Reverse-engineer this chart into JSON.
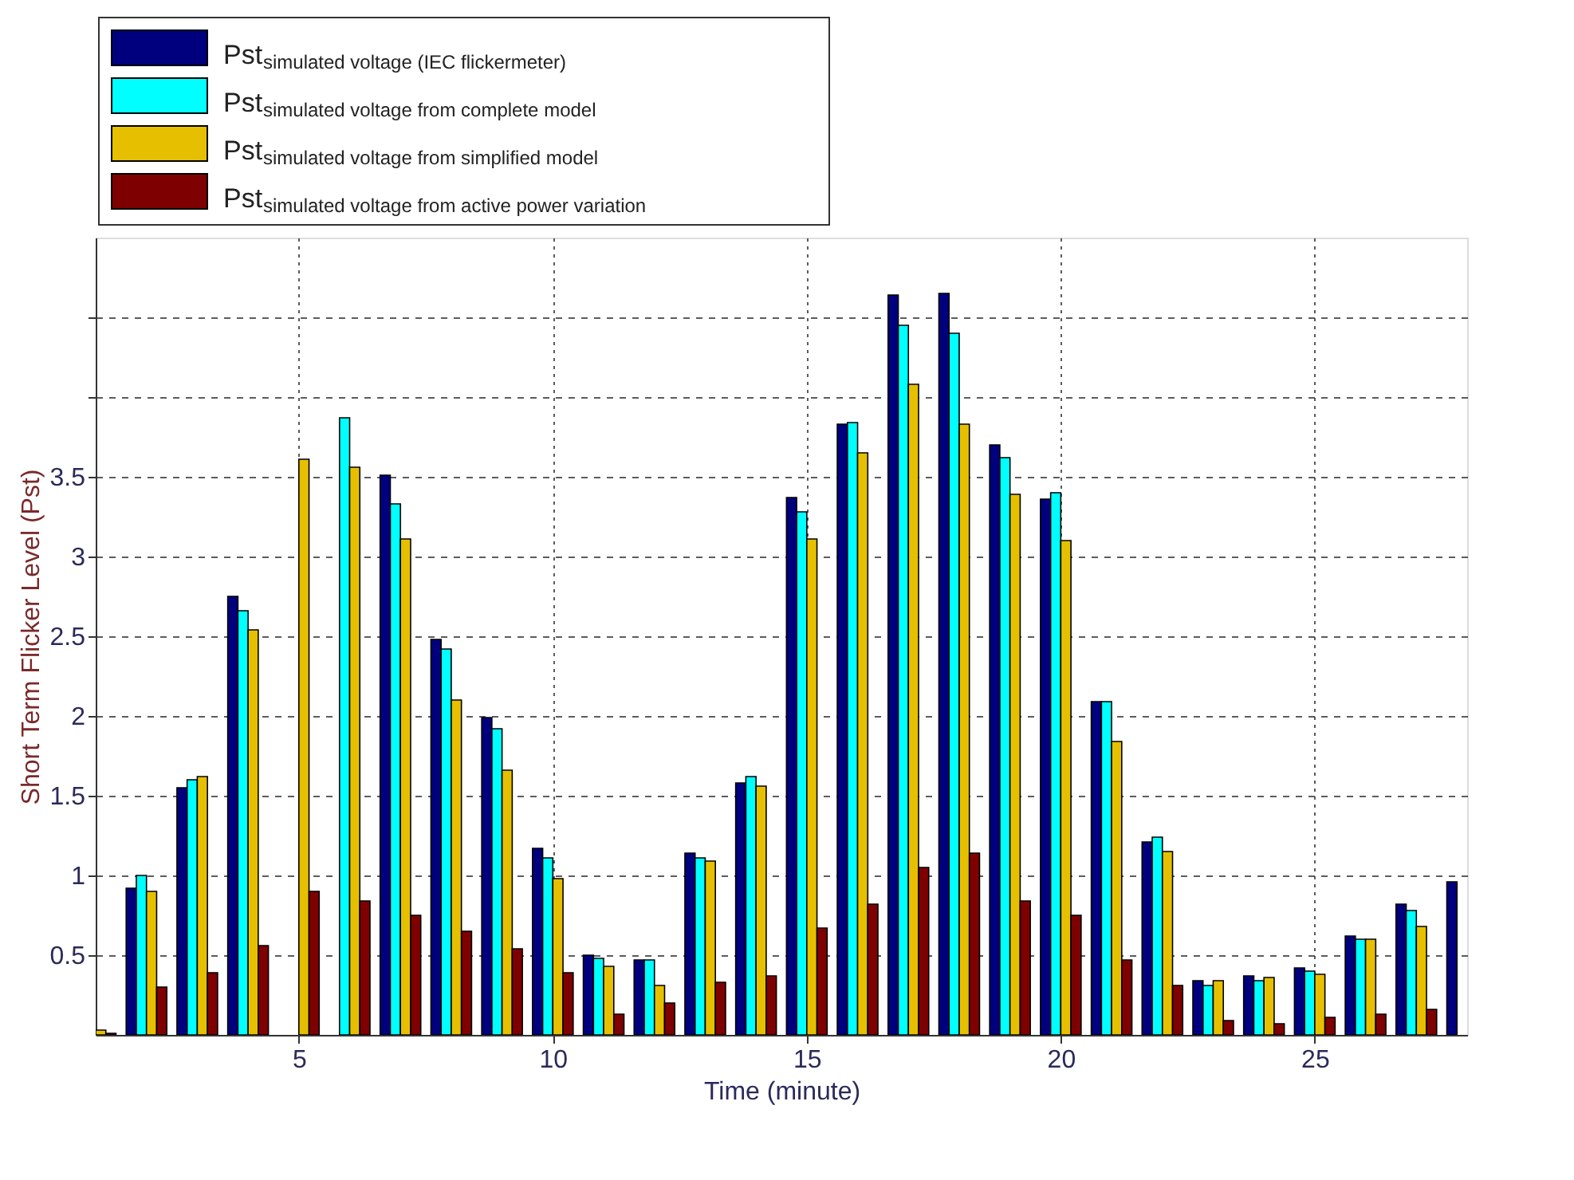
{
  "chart_data": {
    "type": "bar",
    "xlabel": "Time (minute)",
    "ylabel": "Short Term Flicker Level (Pst)",
    "x": [
      1,
      2,
      3,
      4,
      5,
      6,
      7,
      8,
      9,
      10,
      11,
      12,
      13,
      14,
      15,
      16,
      17,
      18,
      19,
      20,
      21,
      22,
      23,
      24,
      25,
      26,
      27,
      28
    ],
    "series": [
      {
        "name": "Pst$_{simulated voltage (IEC flickermeter)}$",
        "color": "#00007f",
        "values": [
          null,
          0.92,
          1.55,
          2.75,
          null,
          null,
          3.51,
          2.48,
          1.99,
          1.17,
          0.5,
          0.47,
          1.14,
          1.58,
          3.37,
          3.83,
          4.64,
          4.65,
          3.7,
          3.36,
          2.09,
          1.21,
          0.34,
          0.37,
          0.42,
          0.62,
          0.82,
          0.96
        ]
      },
      {
        "name": "Pst$_{simulated voltage from complete model}$",
        "color": "#00ffff",
        "values": [
          null,
          1.0,
          1.6,
          2.66,
          null,
          3.87,
          3.33,
          2.42,
          1.92,
          1.11,
          0.48,
          0.47,
          1.11,
          1.62,
          3.28,
          3.84,
          4.45,
          4.4,
          3.62,
          3.4,
          2.09,
          1.24,
          0.31,
          0.34,
          0.4,
          0.6,
          0.78,
          null
        ]
      },
      {
        "name": "Pst$_{simulated voltage from simplified model}$",
        "color": "#e6c000",
        "values": [
          0.03,
          0.9,
          1.62,
          2.54,
          3.61,
          3.56,
          3.11,
          2.1,
          1.66,
          0.98,
          0.43,
          0.31,
          1.09,
          1.56,
          3.11,
          3.65,
          4.08,
          3.83,
          3.39,
          3.1,
          1.84,
          1.15,
          0.34,
          0.36,
          0.38,
          0.6,
          0.68,
          null
        ]
      },
      {
        "name": "Pst$_{simulated voltage from active power variation}$",
        "color": "#7f0000",
        "values": [
          0.01,
          0.3,
          0.39,
          0.56,
          0.9,
          0.84,
          0.75,
          0.65,
          0.54,
          0.39,
          0.13,
          0.2,
          0.33,
          0.37,
          0.67,
          0.82,
          1.05,
          1.14,
          0.84,
          0.75,
          0.47,
          0.31,
          0.09,
          0.07,
          0.11,
          0.13,
          0.16,
          null
        ]
      }
    ],
    "xlim": [
      1,
      28
    ],
    "xticks": [
      5,
      10,
      15,
      20,
      25
    ],
    "ylim": [
      0,
      5
    ],
    "yticks": [
      0.5,
      1,
      1.5,
      2,
      2.5,
      3,
      3.5,
      {
        "value": 4,
        "label": null
      },
      {
        "value": 4.5,
        "label": null
      }
    ],
    "grid": true,
    "legend": "top left"
  }
}
